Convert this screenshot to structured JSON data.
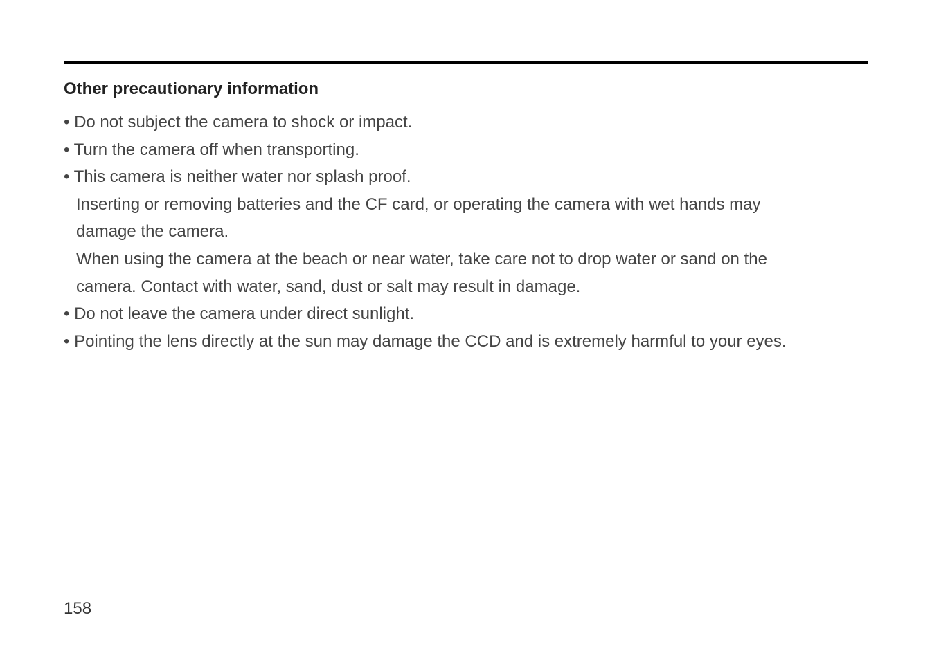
{
  "page": {
    "heading": "Other precautionary information",
    "bullets": [
      {
        "marker": "•  ",
        "text": "Do not subject the camera to shock or impact."
      },
      {
        "marker": "•  ",
        "text": "Turn the camera off when transporting."
      },
      {
        "marker": "• ",
        "text": "This camera is neither water nor splash proof."
      }
    ],
    "sub1a": "Inserting or removing batteries and the CF card, or operating the camera with wet hands may",
    "sub1b": "damage the camera.",
    "sub2a": "When using the camera at the beach or near water, take care not to drop water or sand on the",
    "sub2b": "camera. Contact with water, sand, dust or salt may result in damage.",
    "bullets2": [
      {
        "marker": "• ",
        "text": "Do not leave the camera under direct sunlight."
      },
      {
        "marker": "• ",
        "text": "Pointing the lens directly at the sun may damage the CCD and is extremely harmful to your eyes."
      }
    ],
    "number": "158"
  },
  "colors": {
    "rule": "#000000",
    "heading": "#222222",
    "body": "#444444",
    "background": "#ffffff"
  },
  "typography": {
    "heading_fontsize": 24,
    "heading_weight": "bold",
    "body_fontsize": 24,
    "line_height": 1.65,
    "font_family": "Arial"
  }
}
